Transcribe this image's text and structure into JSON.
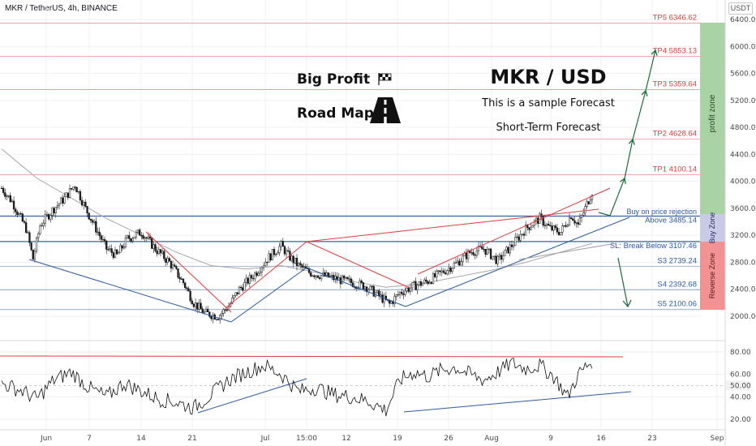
{
  "header": {
    "title": "MKR / TetherUS, 4h, BINANCE",
    "currency_badge": "USDT"
  },
  "overlay": {
    "big_profit": "Big Profit",
    "road_map": "Road Map",
    "pair": "MKR / USD",
    "line1": "This is a sample Forecast",
    "line2": "Short-Term Forecast"
  },
  "zones": {
    "profit": "profit zone",
    "buy": "Buy Zone",
    "reverse": "Reverse Zone"
  },
  "levels": [
    {
      "label": "TP5 6346.62",
      "value": 6346.62,
      "color": "#e03c3c"
    },
    {
      "label": "TP4 5853.13",
      "value": 5853.13,
      "color": "#e03c3c"
    },
    {
      "label": "TP3 5359.64",
      "value": 5359.64,
      "color": "#e03c3c"
    },
    {
      "label": "TP2 4628.64",
      "value": 4628.64,
      "color": "#e03c3c"
    },
    {
      "label": "TP1 4100.14",
      "value": 4100.14,
      "color": "#e03c3c"
    },
    {
      "label": "Above 3485.14",
      "value": 3485.14,
      "color": "#2c5aa0"
    },
    {
      "label": "SL: Break Below 3107.46",
      "value": 3107.46,
      "color": "#2c5aa0"
    },
    {
      "label": "S3 2739.24",
      "value": 2739.24,
      "color": "#2c5aa0"
    },
    {
      "label": "S4 2392.68",
      "value": 2392.68,
      "color": "#2c5aa0"
    },
    {
      "label": "S5 2100.06",
      "value": 2100.06,
      "color": "#2c5aa0"
    }
  ],
  "buy_note": "Buy on price rejection",
  "chart_data": {
    "type": "line",
    "x_ticks": [
      "Jun",
      "7",
      "14",
      "21",
      "Jul",
      "15:00",
      "12",
      "19",
      "26",
      "Aug",
      "9",
      "16",
      "23",
      "Sep"
    ],
    "price_axis_ticks": [
      "6400.00",
      "6000.00",
      "5600.00",
      "5200.00",
      "4800.00",
      "4400.00",
      "4000.00",
      "3600.00",
      "3200.00",
      "2800.00",
      "2400.00",
      "2000.00"
    ],
    "price_ylim": [
      1800,
      6550
    ],
    "price_keypoints": [
      {
        "t": 0,
        "v": 3900
      },
      {
        "t": 3,
        "v": 3700
      },
      {
        "t": 7,
        "v": 3300
      },
      {
        "t": 9,
        "v": 2850
      },
      {
        "t": 11,
        "v": 3350
      },
      {
        "t": 15,
        "v": 3600
      },
      {
        "t": 18,
        "v": 3750
      },
      {
        "t": 21,
        "v": 3950
      },
      {
        "t": 24,
        "v": 3600
      },
      {
        "t": 27,
        "v": 3300
      },
      {
        "t": 30,
        "v": 3000
      },
      {
        "t": 33,
        "v": 2900
      },
      {
        "t": 36,
        "v": 3150
      },
      {
        "t": 40,
        "v": 3250
      },
      {
        "t": 44,
        "v": 3000
      },
      {
        "t": 48,
        "v": 2800
      },
      {
        "t": 52,
        "v": 2500
      },
      {
        "t": 55,
        "v": 2200
      },
      {
        "t": 58,
        "v": 2050
      },
      {
        "t": 62,
        "v": 2000
      },
      {
        "t": 65,
        "v": 2150
      },
      {
        "t": 68,
        "v": 2400
      },
      {
        "t": 72,
        "v": 2600
      },
      {
        "t": 76,
        "v": 2850
      },
      {
        "t": 80,
        "v": 3050
      },
      {
        "t": 82,
        "v": 2900
      },
      {
        "t": 85,
        "v": 2750
      },
      {
        "t": 88,
        "v": 2650
      },
      {
        "t": 92,
        "v": 2600
      },
      {
        "t": 96,
        "v": 2550
      },
      {
        "t": 100,
        "v": 2500
      },
      {
        "t": 104,
        "v": 2450
      },
      {
        "t": 108,
        "v": 2300
      },
      {
        "t": 111,
        "v": 2180
      },
      {
        "t": 114,
        "v": 2350
      },
      {
        "t": 118,
        "v": 2450
      },
      {
        "t": 122,
        "v": 2520
      },
      {
        "t": 126,
        "v": 2650
      },
      {
        "t": 130,
        "v": 2780
      },
      {
        "t": 134,
        "v": 2950
      },
      {
        "t": 138,
        "v": 3000
      },
      {
        "t": 142,
        "v": 2820
      },
      {
        "t": 146,
        "v": 3050
      },
      {
        "t": 150,
        "v": 3300
      },
      {
        "t": 154,
        "v": 3450
      },
      {
        "t": 157,
        "v": 3300
      },
      {
        "t": 160,
        "v": 3250
      },
      {
        "t": 163,
        "v": 3500
      },
      {
        "t": 165,
        "v": 3350
      },
      {
        "t": 167,
        "v": 3600
      },
      {
        "t": 169,
        "v": 3850
      }
    ],
    "ma_keypoints": [
      {
        "t": 0,
        "v": 4480
      },
      {
        "t": 10,
        "v": 4050
      },
      {
        "t": 20,
        "v": 3750
      },
      {
        "t": 30,
        "v": 3450
      },
      {
        "t": 40,
        "v": 3200
      },
      {
        "t": 50,
        "v": 2950
      },
      {
        "t": 60,
        "v": 2750
      },
      {
        "t": 70,
        "v": 2700
      },
      {
        "t": 80,
        "v": 2750
      },
      {
        "t": 90,
        "v": 2650
      },
      {
        "t": 100,
        "v": 2520
      },
      {
        "t": 110,
        "v": 2430
      },
      {
        "t": 120,
        "v": 2480
      },
      {
        "t": 130,
        "v": 2580
      },
      {
        "t": 140,
        "v": 2680
      },
      {
        "t": 150,
        "v": 2800
      },
      {
        "t": 160,
        "v": 2950
      },
      {
        "t": 169,
        "v": 3080
      }
    ],
    "rsi_axis_ticks": [
      "80.00",
      "60.00",
      "50.00",
      "40.00",
      "20.00"
    ],
    "rsi_ylim": [
      15,
      88
    ],
    "rsi_keypoints": [
      {
        "t": 0,
        "v": 52
      },
      {
        "t": 6,
        "v": 45
      },
      {
        "t": 10,
        "v": 38
      },
      {
        "t": 15,
        "v": 55
      },
      {
        "t": 20,
        "v": 62
      },
      {
        "t": 25,
        "v": 48
      },
      {
        "t": 30,
        "v": 40
      },
      {
        "t": 35,
        "v": 52
      },
      {
        "t": 40,
        "v": 45
      },
      {
        "t": 45,
        "v": 38
      },
      {
        "t": 50,
        "v": 35
      },
      {
        "t": 55,
        "v": 30
      },
      {
        "t": 60,
        "v": 42
      },
      {
        "t": 65,
        "v": 55
      },
      {
        "t": 70,
        "v": 62
      },
      {
        "t": 75,
        "v": 68
      },
      {
        "t": 80,
        "v": 60
      },
      {
        "t": 85,
        "v": 45
      },
      {
        "t": 90,
        "v": 48
      },
      {
        "t": 95,
        "v": 42
      },
      {
        "t": 100,
        "v": 40
      },
      {
        "t": 105,
        "v": 36
      },
      {
        "t": 110,
        "v": 28
      },
      {
        "t": 114,
        "v": 55
      },
      {
        "t": 118,
        "v": 62
      },
      {
        "t": 122,
        "v": 58
      },
      {
        "t": 126,
        "v": 64
      },
      {
        "t": 130,
        "v": 66
      },
      {
        "t": 134,
        "v": 60
      },
      {
        "t": 138,
        "v": 55
      },
      {
        "t": 142,
        "v": 62
      },
      {
        "t": 146,
        "v": 70
      },
      {
        "t": 150,
        "v": 65
      },
      {
        "t": 154,
        "v": 68
      },
      {
        "t": 158,
        "v": 58
      },
      {
        "t": 162,
        "v": 40
      },
      {
        "t": 165,
        "v": 60
      },
      {
        "t": 169,
        "v": 72
      }
    ]
  },
  "colors": {
    "up": "#1b1b1b",
    "grid": "#ececec",
    "red": "#e03c3c",
    "blue": "#2c5aa0",
    "green": "#1e6b3a",
    "profit_zone": "#a9d3a4",
    "buy_zone": "#c9cbe6",
    "reverse_zone": "#f29292"
  }
}
